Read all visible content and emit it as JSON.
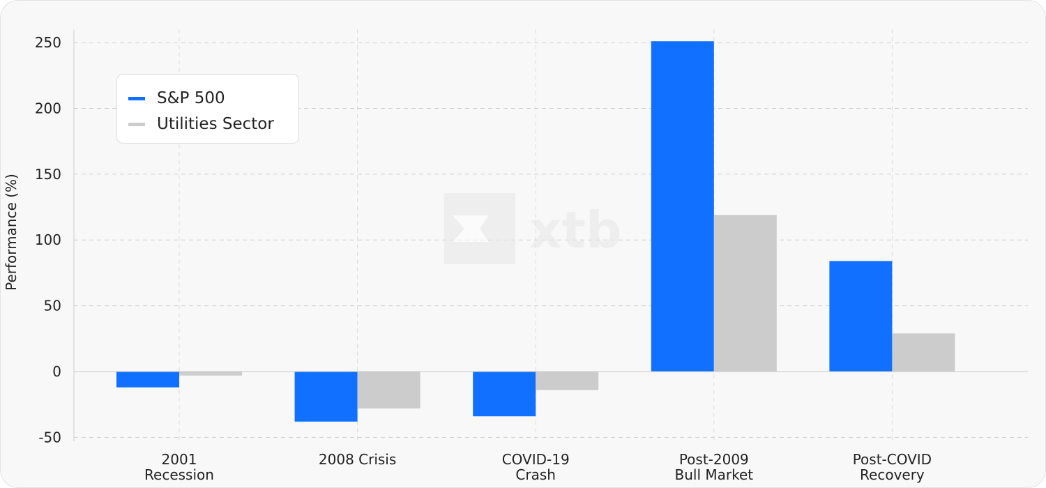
{
  "chart_data": {
    "type": "bar",
    "categories": [
      [
        "2001",
        "Recession"
      ],
      [
        "2008 Crisis"
      ],
      [
        "COVID-19",
        "Crash"
      ],
      [
        "Post-2009",
        "Bull Market"
      ],
      [
        "Post-COVID",
        "Recovery"
      ]
    ],
    "series": [
      {
        "name": "S&P 500",
        "color": "#1170ff",
        "values": [
          -12,
          -38,
          -34,
          251,
          84
        ]
      },
      {
        "name": "Utilities Sector",
        "color": "#cccccc",
        "values": [
          -3,
          -28,
          -14,
          119,
          29
        ]
      }
    ],
    "ylabel": "Performance (%)",
    "xlabel": "",
    "ylim": [
      -53,
      260
    ],
    "yticks": [
      -50,
      0,
      50,
      100,
      150,
      200,
      250
    ],
    "grid": true,
    "legend_position": "top-left",
    "watermark_text": "xtb"
  }
}
